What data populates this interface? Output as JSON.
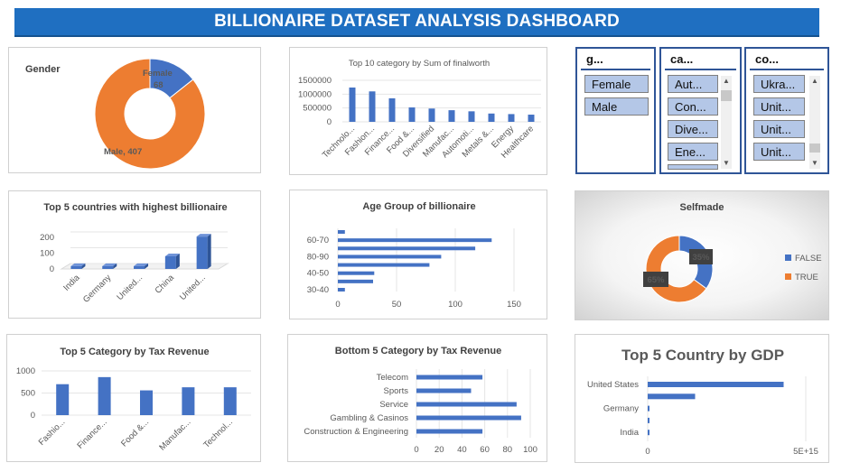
{
  "dashboard": {
    "title": "BILLIONAIRE DATASET ANALYSIS DASHBOARD"
  },
  "colors": {
    "blue": "#4472c4",
    "orange": "#ed7d31",
    "banner": "#1f6fc1",
    "slicer_border": "#2f5597",
    "slicer_item": "#b4c7e7"
  },
  "slicers": [
    {
      "header": "g...",
      "items": [
        "Female",
        "Male"
      ],
      "scroll": false
    },
    {
      "header": "ca...",
      "items": [
        "Aut...",
        "Con...",
        "Dive...",
        "Ene..."
      ],
      "scroll": true
    },
    {
      "header": "co...",
      "items": [
        "Ukra...",
        "Unit...",
        "Unit...",
        "Unit..."
      ],
      "scroll": true
    }
  ],
  "chart_data": [
    {
      "id": "gender",
      "type": "pie",
      "title": "Gender",
      "categories": [
        "Female",
        "Male"
      ],
      "values": [
        68,
        407
      ],
      "labels": [
        "Female, 68",
        "Male, 407"
      ]
    },
    {
      "id": "category_worth",
      "type": "bar",
      "title": "Top 10 category by Sum of finalworth",
      "categories": [
        "Technolo...",
        "Fashion...",
        "Finance...",
        "Food &...",
        "Diversified",
        "Manufac...",
        "Automoti...",
        "Metals &...",
        "Energy",
        "Healthcare"
      ],
      "values": [
        1240000,
        1100000,
        850000,
        520000,
        480000,
        420000,
        380000,
        300000,
        280000,
        260000
      ],
      "yticks": [
        "0",
        "500000",
        "1000000",
        "1500000"
      ],
      "ylim": [
        0,
        1500000
      ]
    },
    {
      "id": "slicer_placeholder"
    },
    {
      "id": "countries",
      "type": "bar",
      "title": "Top 5 countries with highest billionaire",
      "categories": [
        "India",
        "Germany",
        "United...",
        "China",
        "United..."
      ],
      "values": [
        18,
        18,
        18,
        80,
        205
      ],
      "yticks": [
        "0",
        "100",
        "200"
      ],
      "ylim": [
        0,
        250
      ]
    },
    {
      "id": "age_group",
      "type": "bar",
      "title": "Age Group of billionaire",
      "categories": [
        "30-40",
        "",
        "40-50",
        "",
        "80-90",
        "",
        "60-70",
        ""
      ],
      "values": [
        6,
        30,
        31,
        78,
        88,
        117,
        131,
        6
      ],
      "xticks": [
        "0",
        "50",
        "100",
        "150"
      ],
      "xlim": [
        0,
        150
      ]
    },
    {
      "id": "selfmade",
      "type": "pie",
      "title": "Selfmade",
      "categories": [
        "FALSE",
        "TRUE"
      ],
      "values": [
        35,
        65
      ],
      "labels": [
        "35%",
        "65%"
      ]
    },
    {
      "id": "tax_top",
      "type": "bar",
      "title": "Top 5 Category by Tax Revenue",
      "categories": [
        "Fashio...",
        "Finance...",
        "Food &...",
        "Manufac...",
        "Technol..."
      ],
      "values": [
        700,
        860,
        560,
        630,
        630
      ],
      "yticks": [
        "0",
        "500",
        "1000"
      ],
      "ylim": [
        0,
        1000
      ]
    },
    {
      "id": "tax_bottom",
      "type": "bar",
      "title": "Bottom 5 Category by Tax Revenue",
      "categories": [
        "Telecom",
        "Sports",
        "Service",
        "Gambling & Casinos",
        "Construction & Engineering"
      ],
      "values": [
        58,
        48,
        88,
        92,
        58
      ],
      "xticks": [
        "0",
        "20",
        "40",
        "60",
        "80",
        "100"
      ],
      "xlim": [
        0,
        100
      ]
    },
    {
      "id": "gdp",
      "type": "bar",
      "title": "Top 5 Country by GDP",
      "categories": [
        "United States",
        "",
        "Germany",
        "",
        "India"
      ],
      "values": [
        4300000000000000.0,
        1500000000000000.0,
        50000000000000.0,
        50000000000000.0,
        50000000000000.0
      ],
      "xticks": [
        "0",
        "5E+15"
      ],
      "xlim": [
        0,
        5000000000000000.0
      ]
    }
  ]
}
